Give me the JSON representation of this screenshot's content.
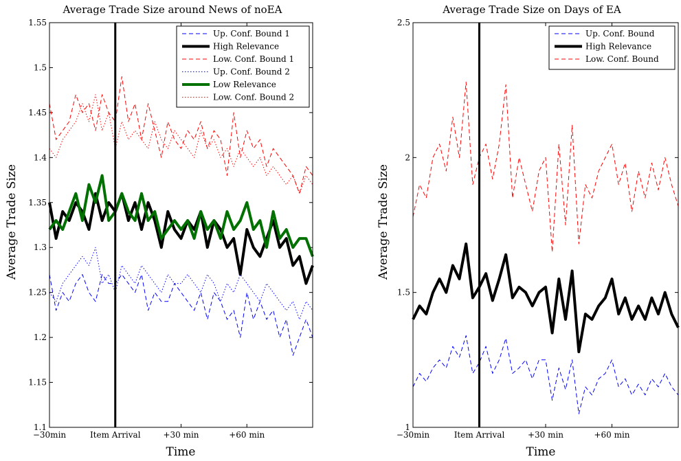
{
  "chart_data": [
    {
      "type": "line",
      "title": "Average Trade Size around News of noEA",
      "xlabel": "Time",
      "ylabel": "Average Trade Size",
      "xlim": [
        -30,
        90
      ],
      "ylim": [
        1.1,
        1.55
      ],
      "yticks": [
        "1.1",
        "1.15",
        "1.2",
        "1.25",
        "1.3",
        "1.35",
        "1.4",
        "1.45",
        "1.5",
        "1.55"
      ],
      "xticks": [
        {
          "value": -30,
          "label": "−30min"
        },
        {
          "value": 0,
          "label": "Item Arrival"
        },
        {
          "value": 30,
          "label": "+30 min"
        },
        {
          "value": 60,
          "label": "+60 min"
        }
      ],
      "vline": {
        "x": 0,
        "label": "Item Arrival"
      },
      "legend_loc": "top-right",
      "series": [
        {
          "name": "Up. Conf. Bound 1",
          "color": "#0000ff",
          "style": "dashed",
          "width": 1,
          "x": [
            -30,
            -27,
            -24,
            -21,
            -18,
            -15,
            -12,
            -9,
            -6,
            -3,
            0,
            3,
            6,
            9,
            12,
            15,
            18,
            21,
            24,
            27,
            30,
            33,
            36,
            39,
            42,
            45,
            48,
            51,
            54,
            57,
            60,
            63,
            66,
            69,
            72,
            75,
            78,
            81,
            84,
            87,
            90
          ],
          "y": [
            1.27,
            1.23,
            1.25,
            1.24,
            1.26,
            1.27,
            1.25,
            1.24,
            1.27,
            1.26,
            1.26,
            1.27,
            1.26,
            1.25,
            1.27,
            1.23,
            1.25,
            1.24,
            1.24,
            1.26,
            1.25,
            1.24,
            1.23,
            1.25,
            1.22,
            1.25,
            1.24,
            1.22,
            1.23,
            1.2,
            1.25,
            1.22,
            1.24,
            1.22,
            1.23,
            1.2,
            1.22,
            1.18,
            1.2,
            1.22,
            1.2
          ]
        },
        {
          "name": "High Relevance",
          "color": "#000000",
          "style": "solid",
          "width": 4,
          "x": [
            -30,
            -27,
            -24,
            -21,
            -18,
            -15,
            -12,
            -9,
            -6,
            -3,
            0,
            3,
            6,
            9,
            12,
            15,
            18,
            21,
            24,
            27,
            30,
            33,
            36,
            39,
            42,
            45,
            48,
            51,
            54,
            57,
            60,
            63,
            66,
            69,
            72,
            75,
            78,
            81,
            84,
            87,
            90
          ],
          "y": [
            1.35,
            1.31,
            1.34,
            1.33,
            1.35,
            1.34,
            1.32,
            1.36,
            1.33,
            1.35,
            1.34,
            1.36,
            1.33,
            1.35,
            1.32,
            1.35,
            1.33,
            1.3,
            1.34,
            1.32,
            1.31,
            1.33,
            1.32,
            1.34,
            1.3,
            1.33,
            1.32,
            1.3,
            1.31,
            1.27,
            1.32,
            1.3,
            1.29,
            1.31,
            1.33,
            1.3,
            1.31,
            1.28,
            1.29,
            1.26,
            1.28
          ]
        },
        {
          "name": "Low. Conf. Bound 1",
          "color": "#ff0000",
          "style": "dashed",
          "width": 1,
          "x": [
            -30,
            -27,
            -24,
            -21,
            -18,
            -15,
            -12,
            -9,
            -6,
            -3,
            0,
            3,
            6,
            9,
            12,
            15,
            18,
            21,
            24,
            27,
            30,
            33,
            36,
            39,
            42,
            45,
            48,
            51,
            54,
            57,
            60,
            63,
            66,
            69,
            72,
            75,
            78,
            81,
            84,
            87,
            90
          ],
          "y": [
            1.46,
            1.42,
            1.43,
            1.44,
            1.47,
            1.45,
            1.46,
            1.43,
            1.47,
            1.45,
            1.44,
            1.49,
            1.44,
            1.46,
            1.42,
            1.46,
            1.43,
            1.4,
            1.44,
            1.42,
            1.41,
            1.43,
            1.42,
            1.44,
            1.41,
            1.43,
            1.42,
            1.38,
            1.45,
            1.4,
            1.43,
            1.41,
            1.42,
            1.39,
            1.41,
            1.4,
            1.39,
            1.38,
            1.36,
            1.39,
            1.38
          ]
        },
        {
          "name": "Up. Conf. Bound 2",
          "color": "#0000ff",
          "style": "dotted",
          "width": 1,
          "x": [
            -30,
            -27,
            -24,
            -21,
            -18,
            -15,
            -12,
            -9,
            -6,
            -3,
            0,
            3,
            6,
            9,
            12,
            15,
            18,
            21,
            24,
            27,
            30,
            33,
            36,
            39,
            42,
            45,
            48,
            51,
            54,
            57,
            60,
            63,
            66,
            69,
            72,
            75,
            78,
            81,
            84,
            87,
            90
          ],
          "y": [
            1.25,
            1.24,
            1.26,
            1.27,
            1.28,
            1.29,
            1.28,
            1.3,
            1.26,
            1.27,
            1.25,
            1.28,
            1.27,
            1.26,
            1.28,
            1.27,
            1.26,
            1.25,
            1.27,
            1.26,
            1.26,
            1.27,
            1.26,
            1.25,
            1.27,
            1.26,
            1.24,
            1.26,
            1.25,
            1.27,
            1.26,
            1.25,
            1.24,
            1.26,
            1.25,
            1.24,
            1.23,
            1.24,
            1.22,
            1.24,
            1.23
          ]
        },
        {
          "name": "Low Relevance",
          "color": "#007000",
          "style": "solid",
          "width": 4,
          "x": [
            -30,
            -27,
            -24,
            -21,
            -18,
            -15,
            -12,
            -9,
            -6,
            -3,
            0,
            3,
            6,
            9,
            12,
            15,
            18,
            21,
            24,
            27,
            30,
            33,
            36,
            39,
            42,
            45,
            48,
            51,
            54,
            57,
            60,
            63,
            66,
            69,
            72,
            75,
            78,
            81,
            84,
            87,
            90
          ],
          "y": [
            1.32,
            1.33,
            1.32,
            1.34,
            1.36,
            1.33,
            1.37,
            1.35,
            1.38,
            1.33,
            1.34,
            1.36,
            1.34,
            1.33,
            1.36,
            1.33,
            1.34,
            1.31,
            1.32,
            1.33,
            1.32,
            1.33,
            1.31,
            1.34,
            1.32,
            1.33,
            1.31,
            1.34,
            1.32,
            1.33,
            1.35,
            1.32,
            1.33,
            1.3,
            1.34,
            1.31,
            1.32,
            1.3,
            1.31,
            1.31,
            1.29
          ]
        },
        {
          "name": "Low. Conf. Bound 2",
          "color": "#ff0000",
          "style": "dotted",
          "width": 1,
          "x": [
            -30,
            -27,
            -24,
            -21,
            -18,
            -15,
            -12,
            -9,
            -6,
            -3,
            0,
            3,
            6,
            9,
            12,
            15,
            18,
            21,
            24,
            27,
            30,
            33,
            36,
            39,
            42,
            45,
            48,
            51,
            54,
            57,
            60,
            63,
            66,
            69,
            72,
            75,
            78,
            81,
            84,
            87,
            90
          ],
          "y": [
            1.41,
            1.4,
            1.42,
            1.43,
            1.44,
            1.46,
            1.44,
            1.47,
            1.43,
            1.45,
            1.41,
            1.44,
            1.42,
            1.43,
            1.42,
            1.41,
            1.44,
            1.42,
            1.41,
            1.43,
            1.42,
            1.41,
            1.4,
            1.43,
            1.41,
            1.42,
            1.4,
            1.41,
            1.39,
            1.41,
            1.4,
            1.39,
            1.4,
            1.38,
            1.39,
            1.38,
            1.37,
            1.38,
            1.36,
            1.38,
            1.37
          ]
        }
      ]
    },
    {
      "type": "line",
      "title": "Average Trade Size on Days of EA",
      "xlabel": "Time",
      "ylabel": "Average Trade Size",
      "xlim": [
        -30,
        90
      ],
      "ylim": [
        1,
        2.5
      ],
      "yticks": [
        "1",
        "1.5",
        "2",
        "2.5"
      ],
      "xticks": [
        {
          "value": -30,
          "label": "−30min"
        },
        {
          "value": 0,
          "label": "Item Arrival"
        },
        {
          "value": 30,
          "label": "+30 min"
        },
        {
          "value": 60,
          "label": "+60 min"
        }
      ],
      "vline": {
        "x": 0,
        "label": "Item Arrival"
      },
      "legend_loc": "top-right",
      "series": [
        {
          "name": "Up. Conf. Bound",
          "color": "#0000ff",
          "style": "dashed",
          "width": 1,
          "x": [
            -30,
            -27,
            -24,
            -21,
            -18,
            -15,
            -12,
            -9,
            -6,
            -3,
            0,
            3,
            6,
            9,
            12,
            15,
            18,
            21,
            24,
            27,
            30,
            33,
            36,
            39,
            42,
            45,
            48,
            51,
            54,
            57,
            60,
            63,
            66,
            69,
            72,
            75,
            78,
            81,
            84,
            87,
            90
          ],
          "y": [
            1.15,
            1.2,
            1.17,
            1.22,
            1.25,
            1.22,
            1.3,
            1.26,
            1.34,
            1.2,
            1.24,
            1.3,
            1.2,
            1.25,
            1.33,
            1.2,
            1.22,
            1.25,
            1.18,
            1.25,
            1.25,
            1.1,
            1.22,
            1.14,
            1.25,
            1.05,
            1.15,
            1.12,
            1.18,
            1.2,
            1.25,
            1.15,
            1.18,
            1.12,
            1.16,
            1.12,
            1.18,
            1.15,
            1.2,
            1.15,
            1.12
          ]
        },
        {
          "name": "High Relevance",
          "color": "#000000",
          "style": "solid",
          "width": 4,
          "x": [
            -30,
            -27,
            -24,
            -21,
            -18,
            -15,
            -12,
            -9,
            -6,
            -3,
            0,
            3,
            6,
            9,
            12,
            15,
            18,
            21,
            24,
            27,
            30,
            33,
            36,
            39,
            42,
            45,
            48,
            51,
            54,
            57,
            60,
            63,
            66,
            69,
            72,
            75,
            78,
            81,
            84,
            87,
            90
          ],
          "y": [
            1.4,
            1.45,
            1.42,
            1.5,
            1.55,
            1.5,
            1.6,
            1.55,
            1.68,
            1.48,
            1.52,
            1.57,
            1.47,
            1.55,
            1.64,
            1.48,
            1.52,
            1.5,
            1.45,
            1.5,
            1.52,
            1.35,
            1.55,
            1.4,
            1.58,
            1.28,
            1.42,
            1.4,
            1.45,
            1.48,
            1.55,
            1.42,
            1.48,
            1.4,
            1.45,
            1.4,
            1.48,
            1.42,
            1.5,
            1.42,
            1.37
          ]
        },
        {
          "name": "Low. Conf. Bound",
          "color": "#ff0000",
          "style": "dashed",
          "width": 1,
          "x": [
            -30,
            -27,
            -24,
            -21,
            -18,
            -15,
            -12,
            -9,
            -6,
            -3,
            0,
            3,
            6,
            9,
            12,
            15,
            18,
            21,
            24,
            27,
            30,
            33,
            36,
            39,
            42,
            45,
            48,
            51,
            54,
            57,
            60,
            63,
            66,
            69,
            72,
            75,
            78,
            81,
            84,
            87,
            90
          ],
          "y": [
            1.78,
            1.9,
            1.85,
            2.0,
            2.05,
            1.95,
            2.15,
            2.0,
            2.28,
            1.9,
            2.0,
            2.05,
            1.92,
            2.05,
            2.27,
            1.85,
            2.0,
            1.9,
            1.8,
            1.95,
            2.0,
            1.65,
            2.05,
            1.75,
            2.12,
            1.68,
            1.9,
            1.85,
            1.95,
            2.0,
            2.05,
            1.9,
            1.98,
            1.8,
            1.95,
            1.85,
            1.98,
            1.88,
            2.0,
            1.9,
            1.82
          ]
        }
      ]
    }
  ]
}
